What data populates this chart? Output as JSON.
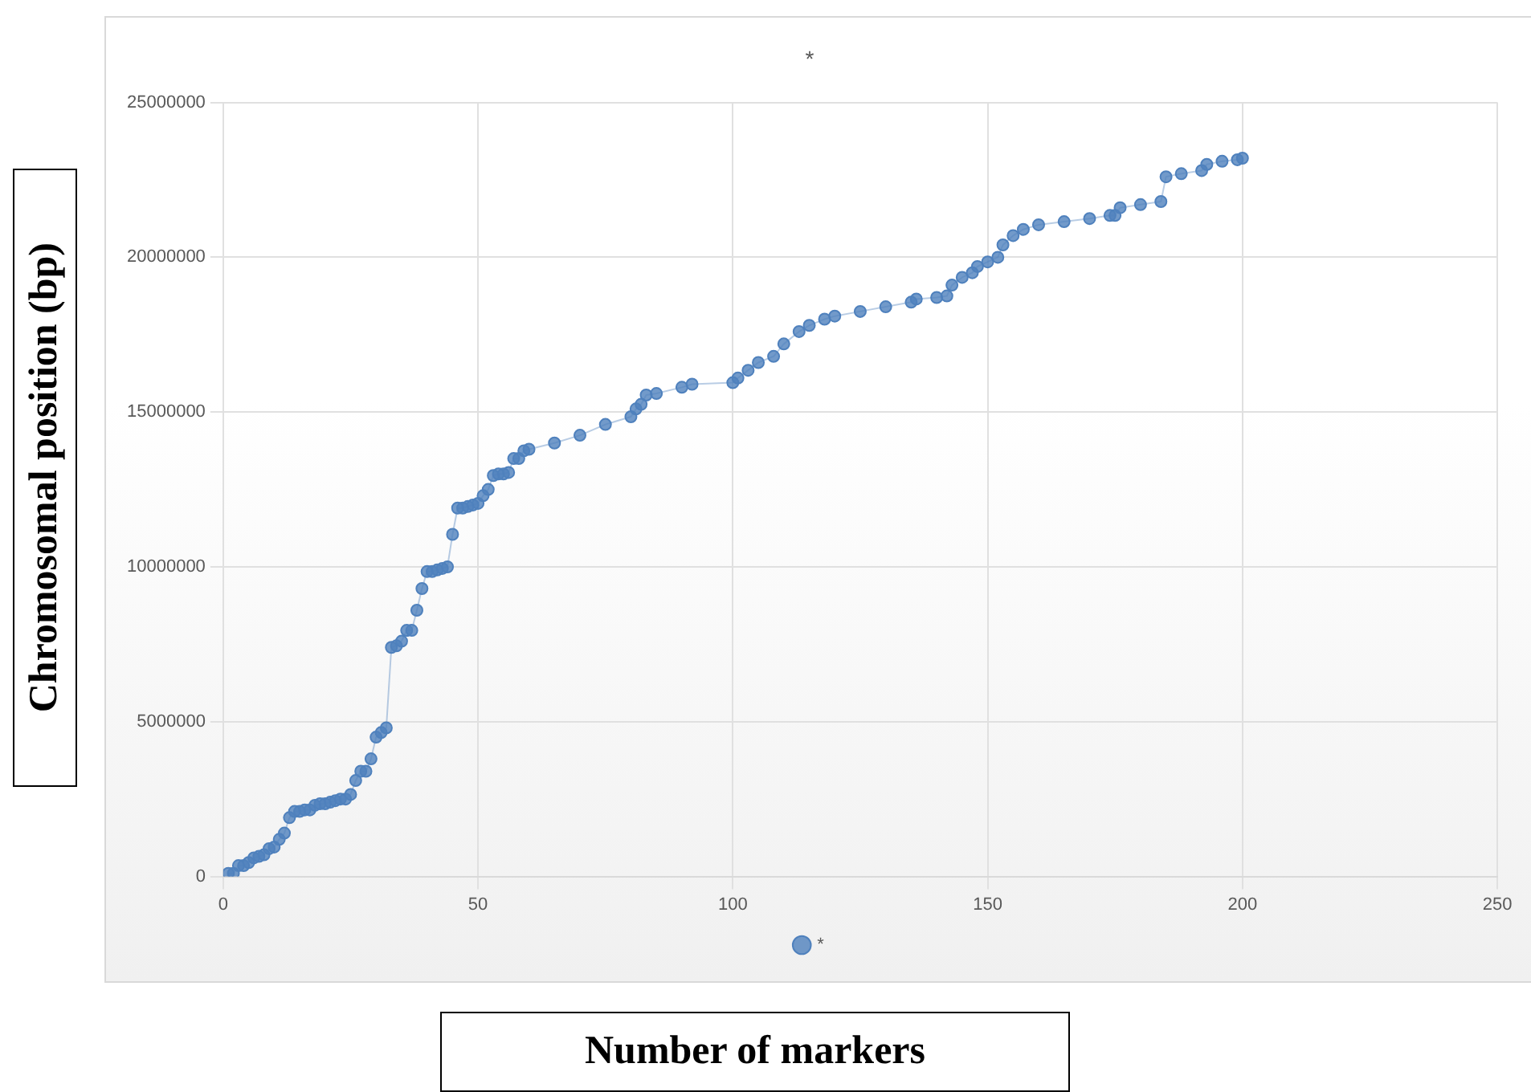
{
  "chart_data": {
    "type": "line",
    "title": "*",
    "xlabel": "Number of markers",
    "ylabel": "Chromosomal position (bp)",
    "x": [
      1,
      2,
      3,
      4,
      5,
      6,
      7,
      8,
      9,
      10,
      11,
      12,
      13,
      14,
      15,
      16,
      17,
      18,
      19,
      20,
      21,
      22,
      23,
      24,
      25,
      26,
      27,
      28,
      29,
      30,
      31,
      32,
      33,
      34,
      35,
      36,
      37,
      38,
      39,
      40,
      41,
      42,
      43,
      44,
      45,
      46,
      47,
      48,
      49,
      50,
      51,
      52,
      53,
      54,
      55,
      56,
      57,
      58,
      59,
      60,
      65,
      70,
      75,
      80,
      81,
      82,
      83,
      85,
      90,
      92,
      100,
      101,
      103,
      105,
      108,
      110,
      113,
      115,
      118,
      120,
      125,
      130,
      135,
      136,
      140,
      142,
      143,
      145,
      147,
      148,
      150,
      152,
      153,
      155,
      157,
      160,
      165,
      170,
      174,
      175,
      176,
      180,
      184,
      185,
      188,
      192,
      193,
      196,
      199,
      200
    ],
    "series": [
      {
        "name": "*",
        "color": "#4f81bd",
        "values": [
          100000,
          100000,
          350000,
          350000,
          450000,
          600000,
          650000,
          700000,
          900000,
          950000,
          1200000,
          1400000,
          1900000,
          2100000,
          2100000,
          2150000,
          2150000,
          2300000,
          2350000,
          2350000,
          2400000,
          2450000,
          2500000,
          2500000,
          2650000,
          3100000,
          3400000,
          3400000,
          3800000,
          4500000,
          4650000,
          4800000,
          7400000,
          7450000,
          7600000,
          7950000,
          7950000,
          8600000,
          9300000,
          9850000,
          9850000,
          9900000,
          9950000,
          10000000,
          11050000,
          11900000,
          11900000,
          11950000,
          12000000,
          12050000,
          12300000,
          12500000,
          12950000,
          13000000,
          13000000,
          13050000,
          13500000,
          13500000,
          13750000,
          13800000,
          14000000,
          14250000,
          14600000,
          14850000,
          15100000,
          15250000,
          15550000,
          15600000,
          15800000,
          15900000,
          15950000,
          16100000,
          16350000,
          16600000,
          16800000,
          17200000,
          17600000,
          17800000,
          18000000,
          18100000,
          18250000,
          18400000,
          18550000,
          18650000,
          18700000,
          18750000,
          19100000,
          19350000,
          19500000,
          19700000,
          19850000,
          20000000,
          20400000,
          20700000,
          20900000,
          21050000,
          21150000,
          21250000,
          21350000,
          21350000,
          21600000,
          21700000,
          21800000,
          22600000,
          22700000,
          22800000,
          23000000,
          23100000,
          23150000,
          23200000
        ]
      }
    ],
    "xlim": [
      0,
      250
    ],
    "xticks": [
      0,
      50,
      100,
      150,
      200,
      250
    ],
    "ylim": [
      0,
      25000000
    ],
    "yticks": [
      0,
      5000000,
      10000000,
      15000000,
      20000000,
      25000000
    ],
    "grid": true,
    "legend": "bottom",
    "marker": "circle",
    "line_style": "solid"
  }
}
